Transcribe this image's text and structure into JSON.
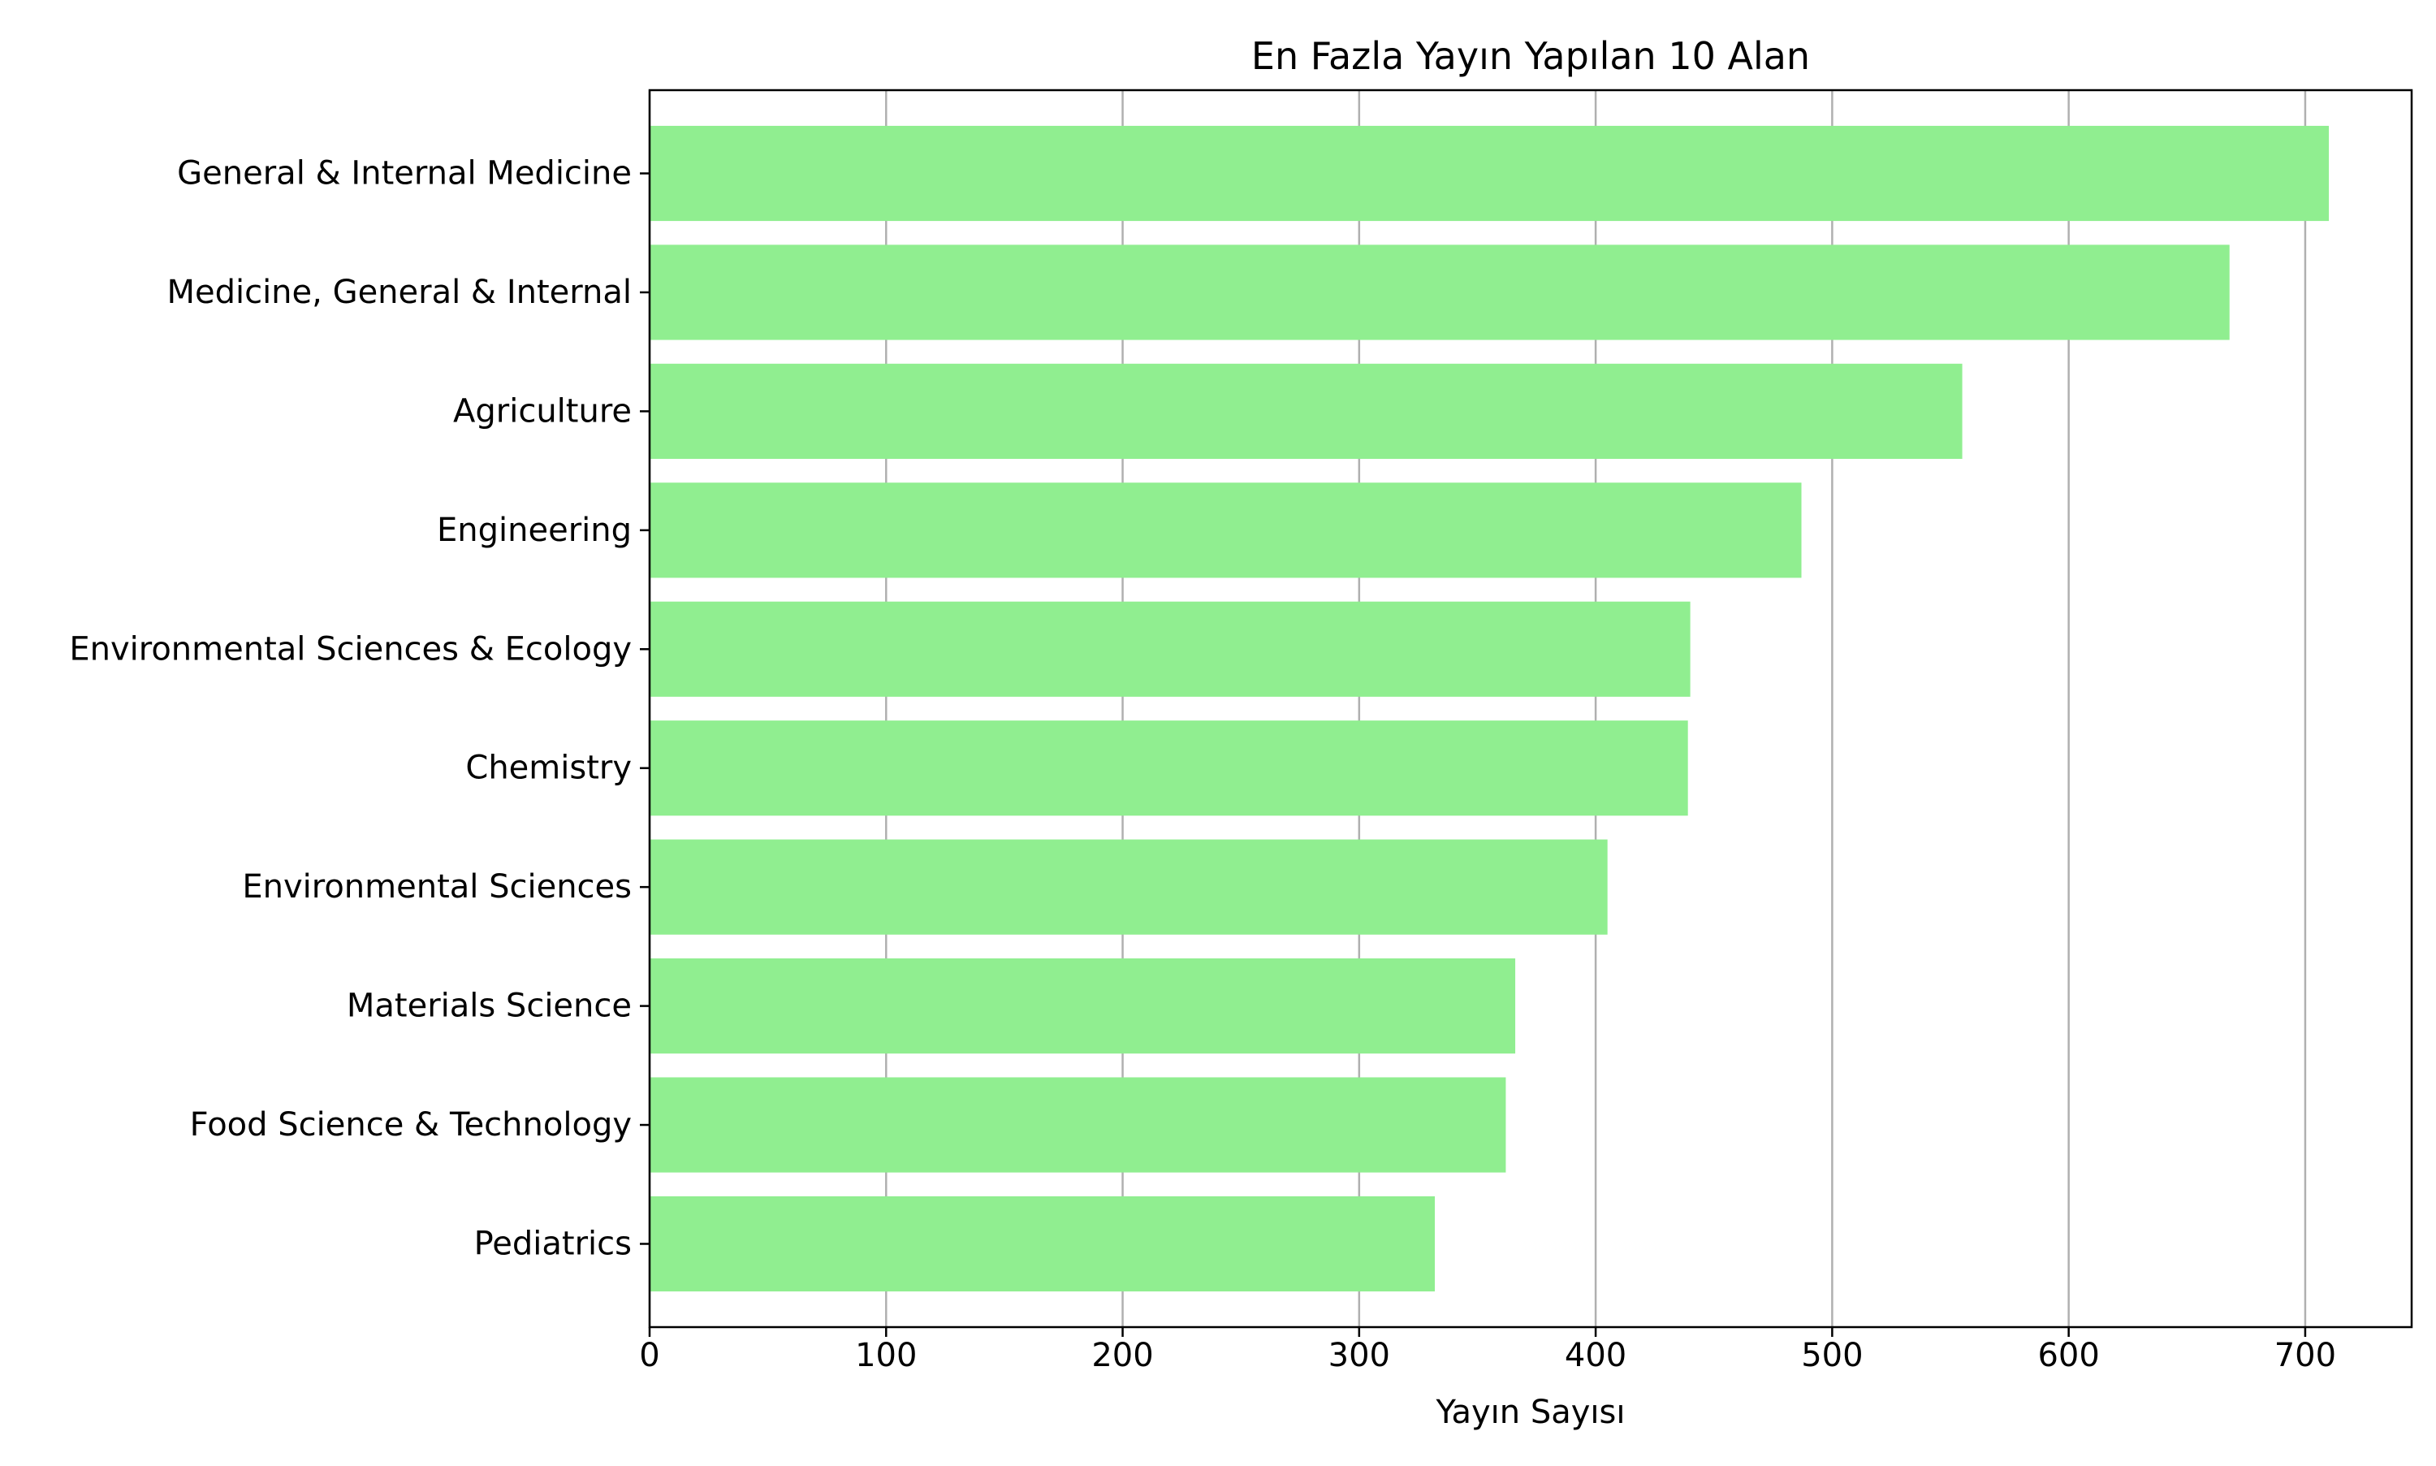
{
  "chart_data": {
    "type": "bar",
    "orientation": "horizontal",
    "title": "En Fazla Yayın Yapılan 10 Alan",
    "xlabel": "Yayın Sayısı",
    "ylabel": "",
    "categories": [
      "General & Internal Medicine",
      "Medicine, General & Internal",
      "Agriculture",
      "Engineering",
      "Environmental Sciences & Ecology",
      "Chemistry",
      "Environmental Sciences",
      "Materials Science",
      "Food Science & Technology",
      "Pediatrics"
    ],
    "values": [
      710,
      668,
      555,
      487,
      440,
      439,
      405,
      366,
      362,
      332
    ],
    "xlim": [
      0,
      745
    ],
    "xticks": [
      0,
      100,
      200,
      300,
      400,
      500,
      600,
      700
    ],
    "xtick_labels": [
      "0",
      "100",
      "200",
      "300",
      "400",
      "500",
      "600",
      "700"
    ],
    "grid": {
      "x": true,
      "y": false
    },
    "colors": {
      "bar": "#90ee90",
      "grid": "#b0b0b0",
      "axes": "#000000"
    }
  }
}
